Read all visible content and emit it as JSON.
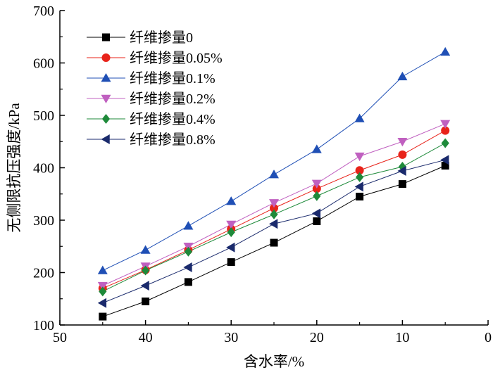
{
  "chart_data": {
    "type": "line",
    "title": "",
    "xlabel": "含水率/%",
    "ylabel": "无侧限抗压强度/kPa",
    "xlim": [
      50,
      0
    ],
    "ylim": [
      100,
      700
    ],
    "x_ticks": [
      50,
      40,
      30,
      20,
      10,
      0
    ],
    "y_ticks": [
      100,
      200,
      300,
      400,
      500,
      600,
      700
    ],
    "x": [
      45,
      40,
      35,
      30,
      25,
      20,
      15,
      10,
      5
    ],
    "grid": false,
    "legend_position": "top-left",
    "series": [
      {
        "name": "纤维掺量0",
        "color": "#000000",
        "marker": "square",
        "values": [
          116,
          145,
          182,
          220,
          257,
          298,
          345,
          369,
          404
        ]
      },
      {
        "name": "纤维掺量0.05%",
        "color": "#e8231a",
        "marker": "circle",
        "values": [
          170,
          205,
          243,
          283,
          323,
          360,
          395,
          425,
          471
        ]
      },
      {
        "name": "纤维掺量0.1%",
        "color": "#1f4fb5",
        "marker": "triangle-up",
        "values": [
          204,
          243,
          289,
          336,
          387,
          435,
          494,
          574,
          621
        ]
      },
      {
        "name": "纤维掺量0.2%",
        "color": "#c060c0",
        "marker": "triangle-down",
        "values": [
          175,
          212,
          250,
          292,
          333,
          370,
          422,
          450,
          484
        ]
      },
      {
        "name": "纤维掺量0.4%",
        "color": "#1e8a3a",
        "marker": "diamond",
        "values": [
          164,
          204,
          240,
          277,
          311,
          346,
          382,
          402,
          447
        ]
      },
      {
        "name": "纤维掺量0.8%",
        "color": "#1a2a6c",
        "marker": "triangle-left",
        "values": [
          142,
          175,
          210,
          248,
          293,
          313,
          364,
          394,
          415
        ]
      }
    ]
  }
}
